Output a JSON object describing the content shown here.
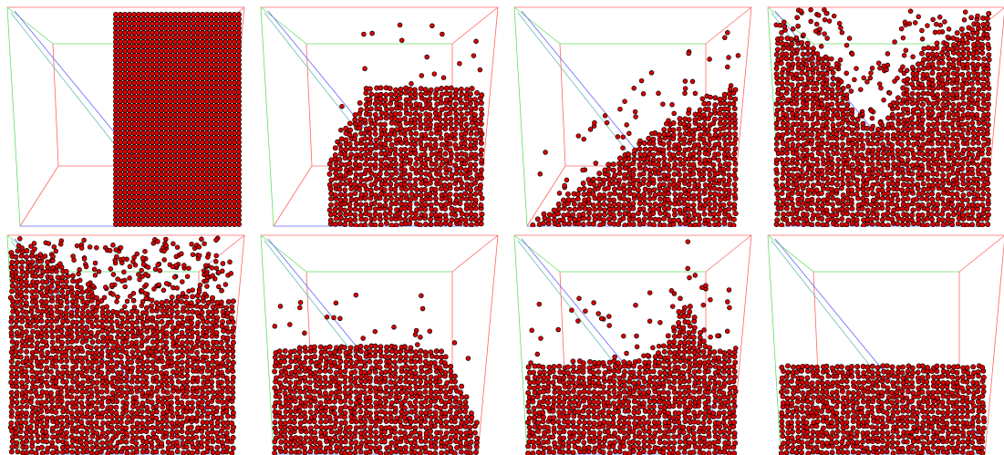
{
  "figure": {
    "description_free": true,
    "grid": {
      "rows": 2,
      "cols": 4
    },
    "colors": {
      "background": "#ffffff",
      "particle": "#dd0000",
      "particle_outline": "#000000",
      "axis_x": "#ff6666",
      "axis_y": "#66dd66",
      "axis_z": "#6666ff",
      "diag": "#66bbbb"
    },
    "frames": [
      {
        "id": 1,
        "state": "column",
        "fill_level": 1.0
      },
      {
        "id": 2,
        "state": "collapse",
        "fill_level": 0.65
      },
      {
        "id": 3,
        "state": "slope",
        "fill_level": 0.45
      },
      {
        "id": 4,
        "state": "splash",
        "fill_level": 0.95
      },
      {
        "id": 5,
        "state": "wave",
        "fill_level": 0.95
      },
      {
        "id": 6,
        "state": "mound",
        "fill_level": 0.5
      },
      {
        "id": 7,
        "state": "ripple",
        "fill_level": 0.35
      },
      {
        "id": 8,
        "state": "settled",
        "fill_level": 0.35
      }
    ]
  }
}
